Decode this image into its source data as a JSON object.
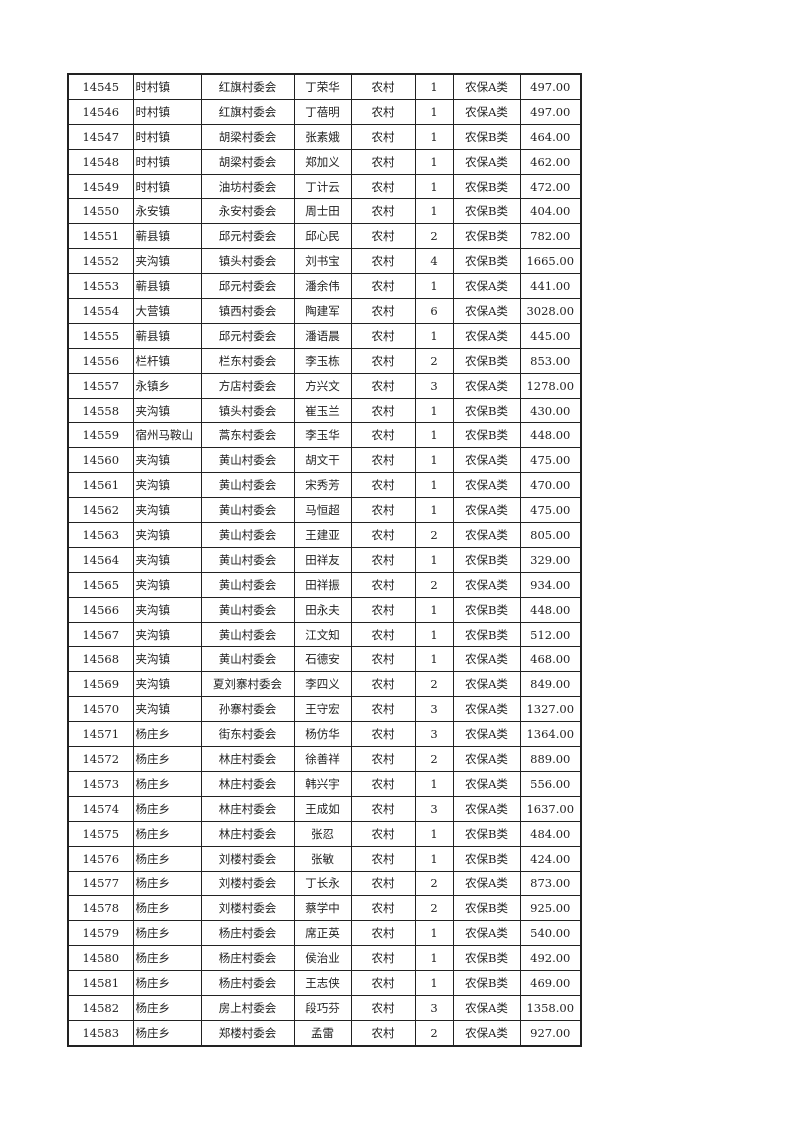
{
  "rows": [
    [
      "14545",
      "时村镇",
      "红旗村委会",
      "丁荣华",
      "农村",
      "1",
      "农保A类",
      "497.00"
    ],
    [
      "14546",
      "时村镇",
      "红旗村委会",
      "丁蓓明",
      "农村",
      "1",
      "农保A类",
      "497.00"
    ],
    [
      "14547",
      "时村镇",
      "胡梁村委会",
      "张素娥",
      "农村",
      "1",
      "农保B类",
      "464.00"
    ],
    [
      "14548",
      "时村镇",
      "胡梁村委会",
      "郑加义",
      "农村",
      "1",
      "农保A类",
      "462.00"
    ],
    [
      "14549",
      "时村镇",
      "油坊村委会",
      "丁计云",
      "农村",
      "1",
      "农保B类",
      "472.00"
    ],
    [
      "14550",
      "永安镇",
      "永安村委会",
      "周士田",
      "农村",
      "1",
      "农保B类",
      "404.00"
    ],
    [
      "14551",
      "蕲县镇",
      "邱元村委会",
      "邱心民",
      "农村",
      "2",
      "农保B类",
      "782.00"
    ],
    [
      "14552",
      "夹沟镇",
      "镇头村委会",
      "刘书宝",
      "农村",
      "4",
      "农保B类",
      "1665.00"
    ],
    [
      "14553",
      "蕲县镇",
      "邱元村委会",
      "潘余伟",
      "农村",
      "1",
      "农保A类",
      "441.00"
    ],
    [
      "14554",
      "大营镇",
      "镇西村委会",
      "陶建军",
      "农村",
      "6",
      "农保A类",
      "3028.00"
    ],
    [
      "14555",
      "蕲县镇",
      "邱元村委会",
      "潘语晨",
      "农村",
      "1",
      "农保A类",
      "445.00"
    ],
    [
      "14556",
      "栏杆镇",
      "栏东村委会",
      "李玉栋",
      "农村",
      "2",
      "农保B类",
      "853.00"
    ],
    [
      "14557",
      "永镇乡",
      "方店村委会",
      "方兴文",
      "农村",
      "3",
      "农保A类",
      "1278.00"
    ],
    [
      "14558",
      "夹沟镇",
      "镇头村委会",
      "崔玉兰",
      "农村",
      "1",
      "农保B类",
      "430.00"
    ],
    [
      "14559",
      "宿州马鞍山",
      "蒿东村委会",
      "李玉华",
      "农村",
      "1",
      "农保B类",
      "448.00"
    ],
    [
      "14560",
      "夹沟镇",
      "黄山村委会",
      "胡文干",
      "农村",
      "1",
      "农保A类",
      "475.00"
    ],
    [
      "14561",
      "夹沟镇",
      "黄山村委会",
      "宋秀芳",
      "农村",
      "1",
      "农保A类",
      "470.00"
    ],
    [
      "14562",
      "夹沟镇",
      "黄山村委会",
      "马恒超",
      "农村",
      "1",
      "农保A类",
      "475.00"
    ],
    [
      "14563",
      "夹沟镇",
      "黄山村委会",
      "王建亚",
      "农村",
      "2",
      "农保A类",
      "805.00"
    ],
    [
      "14564",
      "夹沟镇",
      "黄山村委会",
      "田祥友",
      "农村",
      "1",
      "农保B类",
      "329.00"
    ],
    [
      "14565",
      "夹沟镇",
      "黄山村委会",
      "田祥振",
      "农村",
      "2",
      "农保A类",
      "934.00"
    ],
    [
      "14566",
      "夹沟镇",
      "黄山村委会",
      "田永夫",
      "农村",
      "1",
      "农保B类",
      "448.00"
    ],
    [
      "14567",
      "夹沟镇",
      "黄山村委会",
      "江文知",
      "农村",
      "1",
      "农保B类",
      "512.00"
    ],
    [
      "14568",
      "夹沟镇",
      "黄山村委会",
      "石德安",
      "农村",
      "1",
      "农保A类",
      "468.00"
    ],
    [
      "14569",
      "夹沟镇",
      "夏刘寨村委会",
      "李四义",
      "农村",
      "2",
      "农保A类",
      "849.00"
    ],
    [
      "14570",
      "夹沟镇",
      "孙寨村委会",
      "王守宏",
      "农村",
      "3",
      "农保A类",
      "1327.00"
    ],
    [
      "14571",
      "杨庄乡",
      "街东村委会",
      "杨仿华",
      "农村",
      "3",
      "农保A类",
      "1364.00"
    ],
    [
      "14572",
      "杨庄乡",
      "林庄村委会",
      "徐善祥",
      "农村",
      "2",
      "农保A类",
      "889.00"
    ],
    [
      "14573",
      "杨庄乡",
      "林庄村委会",
      "韩兴宇",
      "农村",
      "1",
      "农保A类",
      "556.00"
    ],
    [
      "14574",
      "杨庄乡",
      "林庄村委会",
      "王成如",
      "农村",
      "3",
      "农保A类",
      "1637.00"
    ],
    [
      "14575",
      "杨庄乡",
      "林庄村委会",
      "张忍",
      "农村",
      "1",
      "农保B类",
      "484.00"
    ],
    [
      "14576",
      "杨庄乡",
      "刘楼村委会",
      "张敏",
      "农村",
      "1",
      "农保B类",
      "424.00"
    ],
    [
      "14577",
      "杨庄乡",
      "刘楼村委会",
      "丁长永",
      "农村",
      "2",
      "农保A类",
      "873.00"
    ],
    [
      "14578",
      "杨庄乡",
      "刘楼村委会",
      "蔡学中",
      "农村",
      "2",
      "农保B类",
      "925.00"
    ],
    [
      "14579",
      "杨庄乡",
      "杨庄村委会",
      "席正英",
      "农村",
      "1",
      "农保A类",
      "540.00"
    ],
    [
      "14580",
      "杨庄乡",
      "杨庄村委会",
      "侯治业",
      "农村",
      "1",
      "农保B类",
      "492.00"
    ],
    [
      "14581",
      "杨庄乡",
      "杨庄村委会",
      "王志侠",
      "农村",
      "1",
      "农保B类",
      "469.00"
    ],
    [
      "14582",
      "杨庄乡",
      "房上村委会",
      "段巧芬",
      "农村",
      "3",
      "农保A类",
      "1358.00"
    ],
    [
      "14583",
      "杨庄乡",
      "郑楼村委会",
      "孟雷",
      "农村",
      "2",
      "农保A类",
      "927.00"
    ]
  ]
}
